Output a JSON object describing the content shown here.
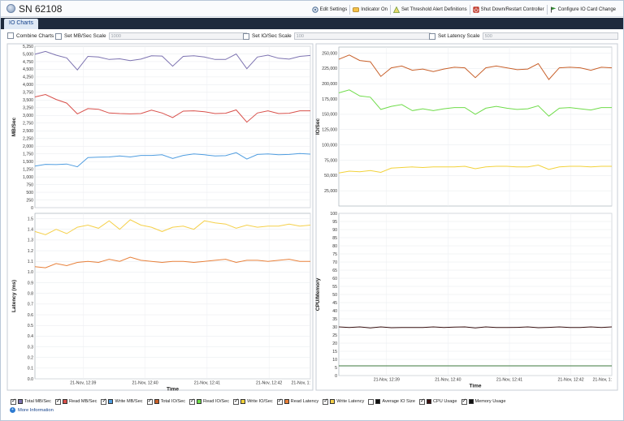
{
  "window": {
    "title": "SN 62108"
  },
  "toolbar": {
    "items": [
      {
        "label": "Edit Settings",
        "icon": "edit-settings-icon",
        "color": "#4f6f96"
      },
      {
        "label": "Indicator On",
        "icon": "indicator-icon",
        "color": "#d99a1a"
      },
      {
        "label": "Set Threshold Alert Definitions",
        "icon": "threshold-alert-icon",
        "color": "#6e9a3d"
      },
      {
        "label": "Shut Down/Restart Controller",
        "icon": "power-icon",
        "color": "#c0392b"
      },
      {
        "label": "Configure IO Card Change",
        "icon": "flag-icon",
        "color": "#2f8a2f"
      }
    ]
  },
  "tabs": [
    {
      "label": "IO Charts",
      "active": true
    }
  ],
  "options": {
    "combine_charts": {
      "label": "Combine Charts",
      "checked": false
    },
    "mb_scale": {
      "label": "Set MB/Sec Scale",
      "value": "1000",
      "checked": false
    },
    "io_scale": {
      "label": "Set IO/Sec Scale",
      "value": "100",
      "checked": false
    },
    "latency_scale": {
      "label": "Set Latency Scale",
      "value": "500",
      "checked": false
    }
  },
  "legend": [
    {
      "label": "Total MB/Sec",
      "color": "#7c72b0",
      "checked": true
    },
    {
      "label": "Read MB/Sec",
      "color": "#d8504b",
      "checked": true
    },
    {
      "label": "Write MB/Sec",
      "color": "#4f9de0",
      "checked": true
    },
    {
      "label": "Total IO/Sec",
      "color": "#c8602a",
      "checked": true
    },
    {
      "label": "Read IO/Sec",
      "color": "#6fdc4a",
      "checked": true
    },
    {
      "label": "Write IO/Sec",
      "color": "#f2d23a",
      "checked": true
    },
    {
      "label": "Read Latency",
      "color": "#e8803a",
      "checked": true
    },
    {
      "label": "Write Latency",
      "color": "#f5d04a",
      "checked": true
    },
    {
      "label": "Average IO Size",
      "color": "#111111",
      "checked": false
    },
    {
      "label": "CPU Usage",
      "color": "#3a1212",
      "checked": true
    },
    {
      "label": "Memory Usage",
      "color": "#111111",
      "checked": true
    }
  ],
  "footer": {
    "more_info": "More Information"
  },
  "chart_data": [
    {
      "type": "line",
      "ylabel": "MB/Sec",
      "ylim": [
        0,
        5250
      ],
      "yticks": [
        "0",
        "250",
        "500",
        "750",
        "1,000",
        "1,250",
        "1,500",
        "1,750",
        "2,000",
        "2,250",
        "2,500",
        "2,750",
        "3,000",
        "3,250",
        "3,500",
        "3,750",
        "4,000",
        "4,250",
        "4,500",
        "4,750",
        "5,000",
        "5,250"
      ],
      "series": [
        {
          "color": "#7c72b0",
          "values": [
            4990,
            5080,
            4960,
            4870,
            4480,
            4920,
            4900,
            4820,
            4840,
            4780,
            4830,
            4940,
            4930,
            4600,
            4920,
            4940,
            4900,
            4820,
            4820,
            5000,
            4520,
            4900,
            4960,
            4860,
            4830,
            4920,
            4950
          ]
        },
        {
          "color": "#d8504b",
          "values": [
            3600,
            3680,
            3520,
            3400,
            3050,
            3220,
            3200,
            3080,
            3060,
            3050,
            3060,
            3170,
            3080,
            2930,
            3140,
            3150,
            3120,
            3060,
            3070,
            3180,
            2780,
            3080,
            3150,
            3060,
            3070,
            3150,
            3150
          ]
        },
        {
          "color": "#4f9de0",
          "values": [
            1350,
            1410,
            1400,
            1420,
            1330,
            1630,
            1640,
            1650,
            1680,
            1650,
            1700,
            1700,
            1720,
            1600,
            1700,
            1750,
            1720,
            1680,
            1690,
            1790,
            1580,
            1730,
            1750,
            1720,
            1730,
            1760,
            1740
          ]
        }
      ],
      "grid": true
    },
    {
      "type": "line",
      "ylabel": "IO/Sec",
      "ylim": [
        0,
        260000
      ],
      "yticks": [
        "25,000",
        "50,000",
        "75,000",
        "100,000",
        "125,000",
        "150,000",
        "175,000",
        "200,000",
        "225,000",
        "250,000"
      ],
      "series": [
        {
          "color": "#c8602a",
          "values": [
            240000,
            247000,
            238000,
            236000,
            212000,
            226000,
            229000,
            222000,
            224000,
            220000,
            224000,
            227000,
            226000,
            210000,
            226000,
            229000,
            226000,
            223000,
            224000,
            233000,
            207000,
            226000,
            227000,
            226000,
            222000,
            227000,
            226000
          ]
        },
        {
          "color": "#6fdc4a",
          "values": [
            185000,
            190000,
            180000,
            178000,
            158000,
            163000,
            166000,
            156000,
            159000,
            156000,
            159000,
            161000,
            161000,
            150000,
            160000,
            163000,
            160000,
            158000,
            159000,
            164000,
            147000,
            160000,
            161000,
            159000,
            157000,
            161000,
            161000
          ]
        },
        {
          "color": "#f2d23a",
          "values": [
            54000,
            57000,
            56000,
            58000,
            55000,
            62000,
            63000,
            64000,
            63000,
            64000,
            64000,
            64000,
            65000,
            61000,
            64000,
            65000,
            65000,
            64000,
            64000,
            67000,
            60000,
            64000,
            65000,
            65000,
            64000,
            65000,
            65000
          ]
        }
      ],
      "grid": true
    },
    {
      "type": "line",
      "ylabel": "Latency (ms)",
      "xlabel": "Time",
      "ylim": [
        0,
        1.55
      ],
      "yticks": [
        "0.0",
        "0.1",
        "0.2",
        "0.3",
        "0.4",
        "0.5",
        "0.6",
        "0.7",
        "0.8",
        "0.9",
        "1.0",
        "1.1",
        "1.2",
        "1.3",
        "1.4",
        "1.5"
      ],
      "xticks": [
        "21-Nov, 12:39",
        "21-Nov, 12:40",
        "21-Nov, 12:41",
        "21-Nov, 12:42",
        "21-Nov, 1:"
      ],
      "series": [
        {
          "color": "#f5d04a",
          "values": [
            1.38,
            1.35,
            1.4,
            1.36,
            1.42,
            1.44,
            1.41,
            1.48,
            1.4,
            1.49,
            1.44,
            1.42,
            1.38,
            1.42,
            1.43,
            1.4,
            1.48,
            1.46,
            1.45,
            1.41,
            1.44,
            1.42,
            1.43,
            1.43,
            1.45,
            1.43,
            1.44
          ]
        },
        {
          "color": "#e8803a",
          "values": [
            1.05,
            1.04,
            1.08,
            1.06,
            1.09,
            1.1,
            1.09,
            1.12,
            1.1,
            1.14,
            1.11,
            1.1,
            1.09,
            1.1,
            1.1,
            1.09,
            1.1,
            1.11,
            1.12,
            1.09,
            1.11,
            1.11,
            1.1,
            1.11,
            1.12,
            1.1,
            1.1
          ]
        }
      ],
      "grid": true
    },
    {
      "type": "line",
      "ylabel": "CPU/Memory",
      "xlabel": "Time",
      "ylim": [
        0,
        100
      ],
      "yticks": [
        "0",
        "5",
        "10",
        "15",
        "20",
        "25",
        "30",
        "35",
        "40",
        "45",
        "50",
        "55",
        "60",
        "65",
        "70",
        "75",
        "80",
        "85",
        "90",
        "95",
        "100"
      ],
      "xticks": [
        "21-Nov, 12:39",
        "21-Nov, 12:40",
        "21-Nov, 12:41",
        "21-Nov, 12:42",
        "21-Nov, 1:"
      ],
      "series": [
        {
          "color": "#3a1212",
          "values": [
            30,
            29.6,
            30,
            29.4,
            30,
            29.5,
            29.6,
            29.6,
            29.6,
            30,
            29.6,
            29.9,
            30,
            29.4,
            30,
            29.6,
            29.6,
            29.7,
            30,
            29.5,
            29.7,
            30,
            29.6,
            29.6,
            30,
            29.6,
            30
          ]
        },
        {
          "color": "#3c7a3c",
          "values": [
            6,
            6,
            6,
            6,
            6,
            6,
            6,
            6,
            6,
            6,
            6,
            6,
            6,
            6,
            6,
            6,
            6,
            6,
            6,
            6,
            6,
            6,
            6,
            6,
            6,
            6,
            6
          ]
        }
      ],
      "grid": true
    }
  ]
}
